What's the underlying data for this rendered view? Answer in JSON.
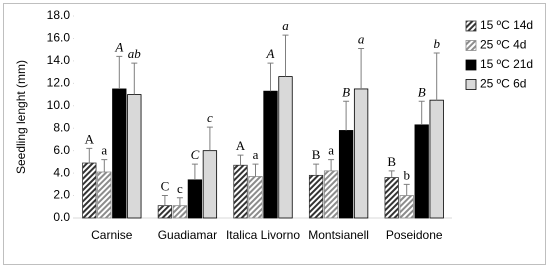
{
  "chart_data": {
    "type": "bar",
    "y_label": "Seedling lenght (mm)",
    "categories": [
      "Carnise",
      "Guadiamar",
      "Italica Livorno",
      "Montsianell",
      "Poseidone"
    ],
    "series": [
      {
        "name": "15 ºC 14d",
        "color": "#333333",
        "hatch": true,
        "values": [
          4.9,
          1.1,
          4.7,
          3.8,
          3.6
        ],
        "errors": [
          1.3,
          0.9,
          0.9,
          1.0,
          0.6
        ],
        "labels": [
          "A",
          "C",
          "A",
          "B",
          "B"
        ],
        "italic": false
      },
      {
        "name": "25 ºC 4d",
        "color": "#8c8c8c",
        "hatch": true,
        "values": [
          4.1,
          1.1,
          3.7,
          4.2,
          2.0
        ],
        "errors": [
          1.1,
          0.7,
          1.1,
          1.0,
          1.0
        ],
        "labels": [
          "a",
          "c",
          "a",
          "a",
          "b"
        ],
        "italic": false
      },
      {
        "name": "15 ºC 21d",
        "color": "#000000",
        "hatch": false,
        "values": [
          11.5,
          3.4,
          11.3,
          7.8,
          8.3
        ],
        "errors": [
          2.9,
          1.4,
          2.5,
          2.6,
          2.1
        ],
        "labels": [
          "A",
          "C",
          "A",
          "B",
          "B"
        ],
        "italic": true
      },
      {
        "name": "25 ºC 6d",
        "color": "#d9d9d9",
        "hatch": false,
        "values": [
          11.0,
          6.0,
          12.6,
          11.5,
          10.5
        ],
        "errors": [
          2.8,
          2.1,
          3.7,
          3.6,
          4.2
        ],
        "labels": [
          "ab",
          "c",
          "a",
          "a",
          "b"
        ],
        "italic": true
      }
    ],
    "ylim": [
      0,
      18
    ],
    "yticks": [
      {
        "value": 0,
        "label": "0.0"
      },
      {
        "value": 2,
        "label": "2.0"
      },
      {
        "value": 4,
        "label": "4.0"
      },
      {
        "value": 6,
        "label": "6.0"
      },
      {
        "value": 8,
        "label": "8.0"
      },
      {
        "value": 10,
        "label": "10.0"
      },
      {
        "value": 12,
        "label": "12.0"
      },
      {
        "value": 14,
        "label": "14.0"
      },
      {
        "value": 16,
        "label": "16.0"
      },
      {
        "value": 18,
        "label": "18.0"
      }
    ],
    "legend": "right"
  }
}
